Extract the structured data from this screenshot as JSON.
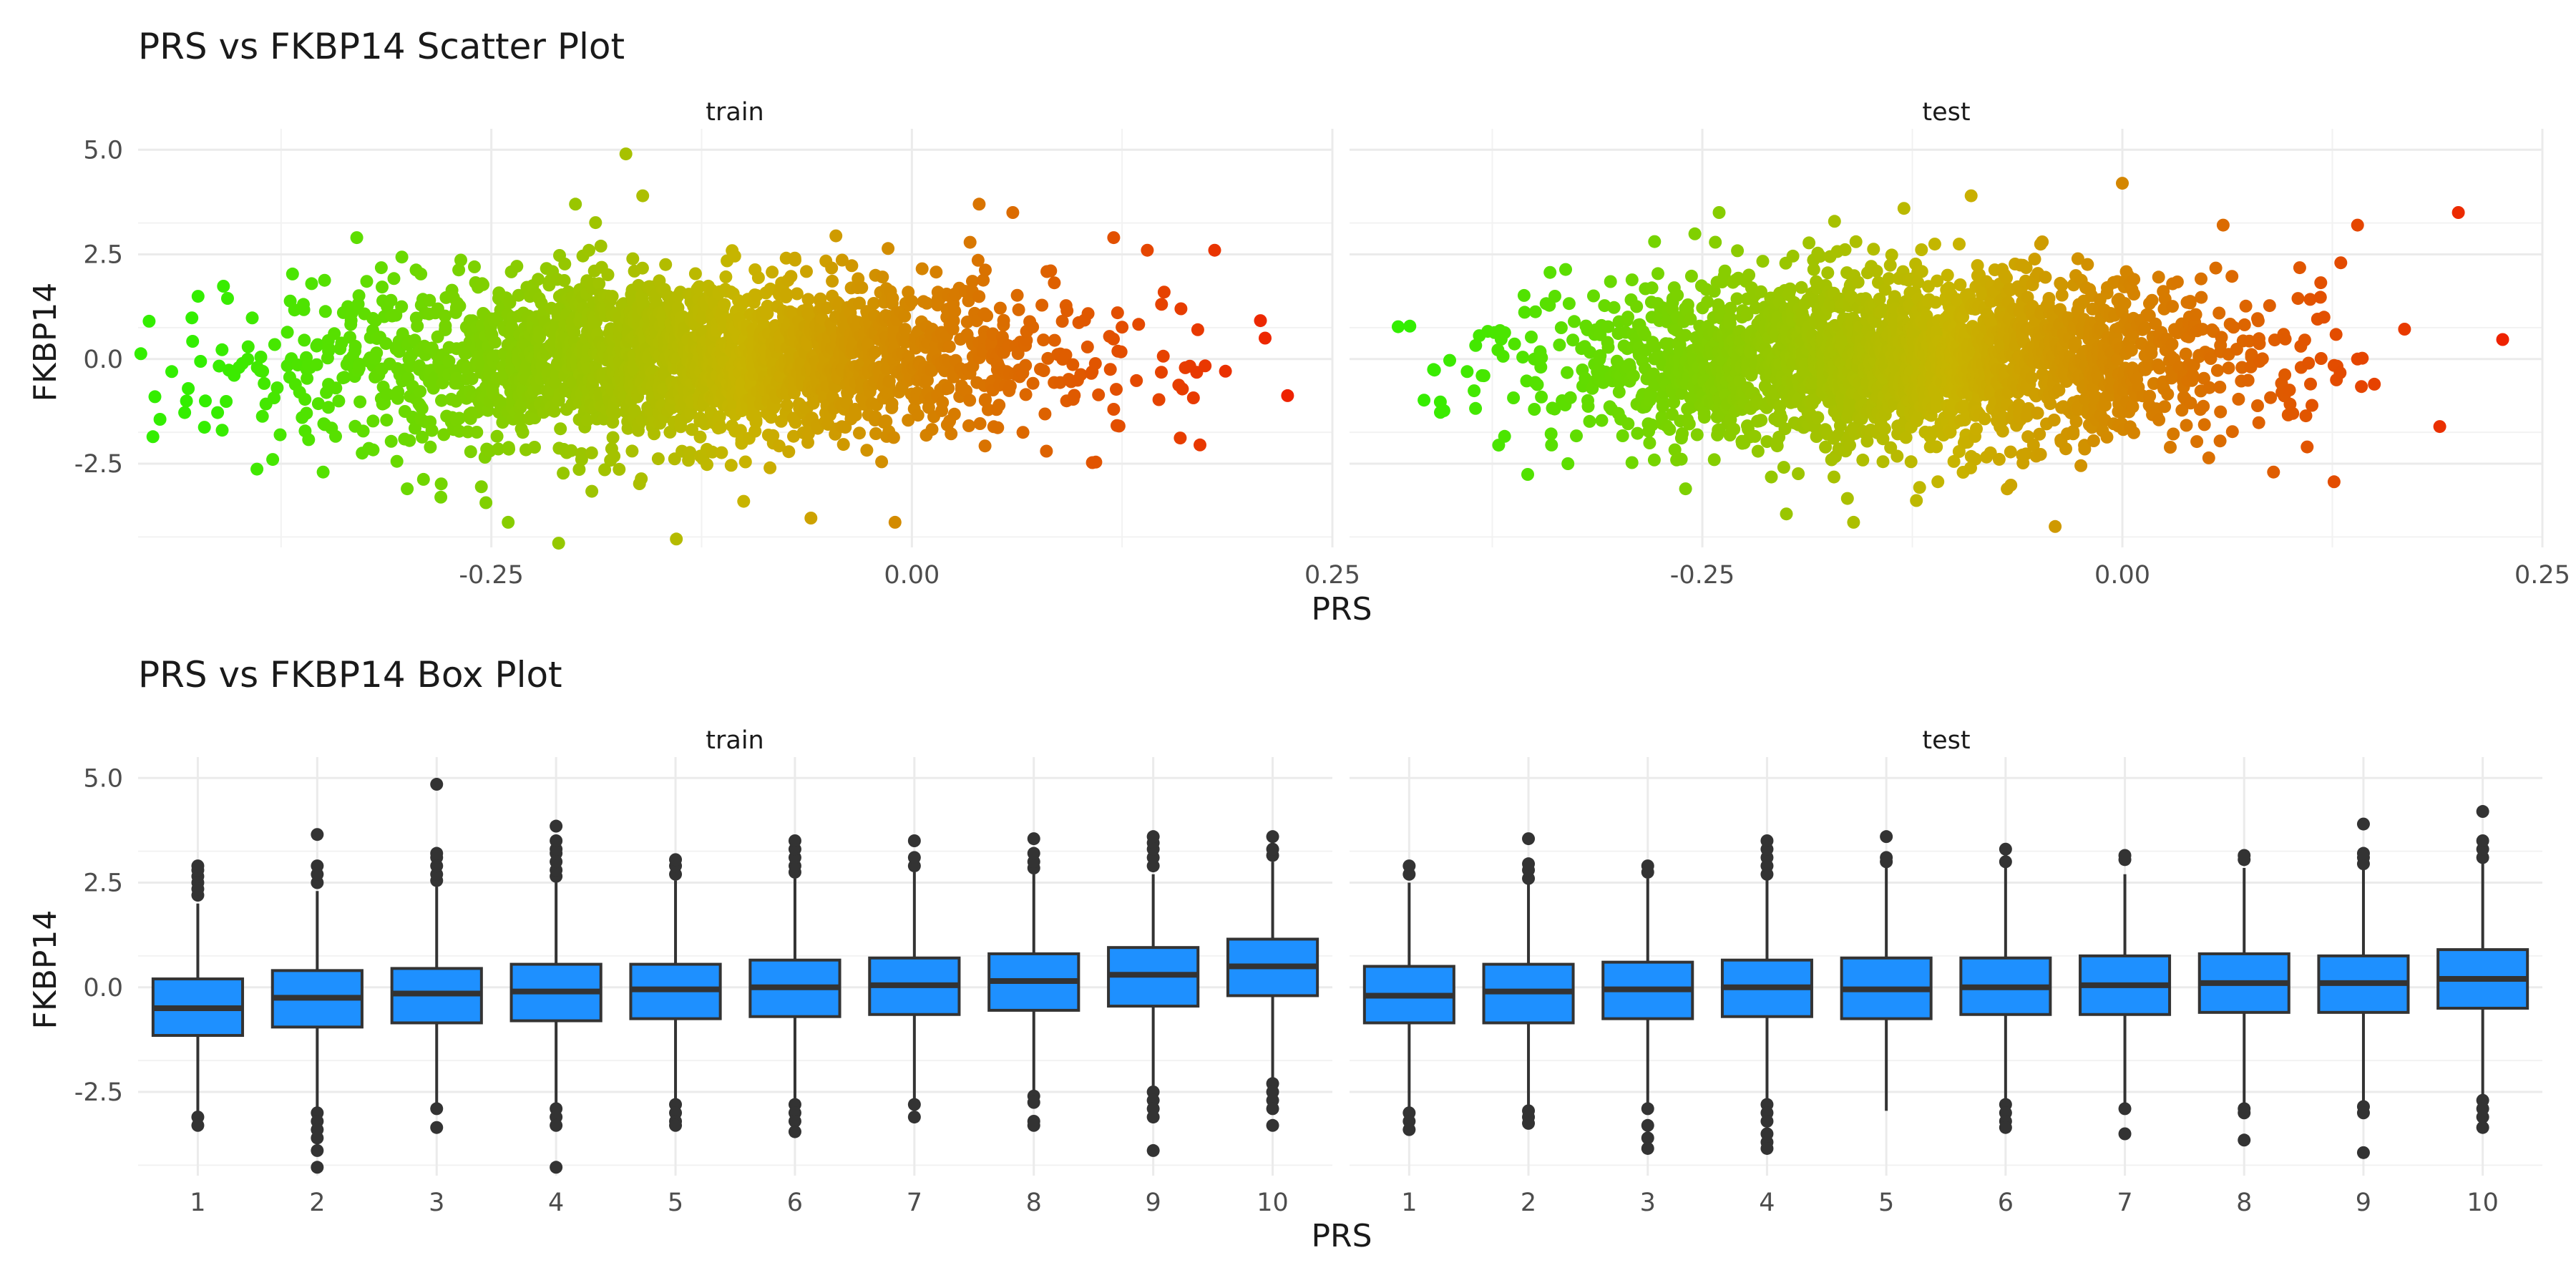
{
  "chart_data": [
    {
      "type": "scatter",
      "title": "PRS vs FKBP14 Scatter Plot",
      "xlabel": "PRS",
      "ylabel": "FKBP14",
      "xlim": [
        -0.46,
        0.25
      ],
      "ylim": [
        -4.5,
        5.5
      ],
      "x_ticks": [
        -0.25,
        0.0,
        0.25
      ],
      "x_tick_labels": [
        "-0.25",
        "0.00",
        "0.25"
      ],
      "y_ticks": [
        -2.5,
        0.0,
        2.5,
        5.0
      ],
      "y_tick_labels": [
        "-2.5",
        "0.0",
        "2.5",
        "5.0"
      ],
      "grid": true,
      "color_scale": {
        "low": "#33ee00",
        "mid": "#c8b400",
        "high": "#ee2200"
      },
      "panels": [
        {
          "name": "train",
          "bulk": {
            "x_center": -0.14,
            "x_sd": 0.11,
            "y_center": 0.0,
            "y_sd": 1.0,
            "slope": 3.5
          },
          "extremes": [
            [
              -0.45,
              -0.9
            ],
            [
              -0.44,
              -0.3
            ],
            [
              -0.42,
              -1.0
            ],
            [
              -0.41,
              -1.7
            ],
            [
              -0.4,
              -0.2
            ],
            [
              -0.38,
              -2.4
            ],
            [
              -0.35,
              -2.7
            ],
            [
              -0.33,
              2.9
            ],
            [
              -0.3,
              -3.1
            ],
            [
              -0.28,
              -3.3
            ],
            [
              -0.24,
              -3.9
            ],
            [
              -0.21,
              -4.4
            ],
            [
              -0.2,
              3.7
            ],
            [
              -0.17,
              4.9
            ],
            [
              -0.16,
              3.9
            ],
            [
              -0.14,
              -4.3
            ],
            [
              -0.1,
              -3.4
            ],
            [
              -0.06,
              -3.8
            ],
            [
              -0.01,
              -3.9
            ],
            [
              0.04,
              3.7
            ],
            [
              0.06,
              3.5
            ],
            [
              0.08,
              -2.2
            ],
            [
              0.12,
              2.9
            ],
            [
              0.12,
              -1.2
            ],
            [
              0.14,
              2.6
            ],
            [
              0.15,
              1.6
            ],
            [
              0.16,
              1.2
            ],
            [
              0.17,
              0.7
            ],
            [
              0.18,
              2.6
            ],
            [
              0.21,
              0.5
            ]
          ]
        },
        {
          "name": "test",
          "bulk": {
            "x_center": -0.13,
            "x_sd": 0.1,
            "y_center": 0.0,
            "y_sd": 1.0,
            "slope": 3.5
          },
          "extremes": [
            [
              -0.41,
              -0.25
            ],
            [
              -0.39,
              -0.3
            ],
            [
              -0.38,
              -0.4
            ],
            [
              -0.35,
              -1.2
            ],
            [
              -0.35,
              0.0
            ],
            [
              -0.33,
              -2.5
            ],
            [
              -0.32,
              0.3
            ],
            [
              -0.31,
              0.8
            ],
            [
              -0.3,
              -1.3
            ],
            [
              -0.28,
              1.7
            ],
            [
              -0.26,
              -3.1
            ],
            [
              -0.24,
              3.5
            ],
            [
              -0.2,
              -3.7
            ],
            [
              -0.16,
              -3.9
            ],
            [
              -0.13,
              3.6
            ],
            [
              -0.09,
              3.9
            ],
            [
              -0.04,
              -4.0
            ],
            [
              0.0,
              4.2
            ],
            [
              0.06,
              3.2
            ],
            [
              0.09,
              -2.7
            ],
            [
              0.11,
              -2.1
            ],
            [
              0.12,
              1.0
            ],
            [
              0.13,
              2.3
            ],
            [
              0.14,
              3.2
            ],
            [
              0.14,
              0.0
            ],
            [
              0.15,
              -0.6
            ],
            [
              0.2,
              3.5
            ]
          ]
        }
      ]
    },
    {
      "type": "box",
      "title": "PRS vs FKBP14 Box Plot",
      "xlabel": "PRS",
      "ylabel": "FKBP14",
      "categories": [
        "1",
        "2",
        "3",
        "4",
        "5",
        "6",
        "7",
        "8",
        "9",
        "10"
      ],
      "ylim": [
        -4.5,
        5.5
      ],
      "y_ticks": [
        -2.5,
        0.0,
        2.5,
        5.0
      ],
      "y_tick_labels": [
        "-2.5",
        "0.0",
        "2.5",
        "5.0"
      ],
      "grid": true,
      "box_fill": "#1e90ff",
      "box_stroke": "#333333",
      "panels": [
        {
          "name": "train",
          "boxes": [
            {
              "min": -3.0,
              "q1": -1.15,
              "median": -0.5,
              "q3": 0.2,
              "max": 2.0,
              "outliers": [
                2.2,
                2.35,
                2.5,
                2.65,
                2.8,
                2.9,
                -3.1,
                -3.3
              ]
            },
            {
              "min": -2.85,
              "q1": -0.95,
              "median": -0.25,
              "q3": 0.4,
              "max": 2.3,
              "outliers": [
                2.5,
                2.7,
                2.9,
                3.65,
                -3.0,
                -3.2,
                -3.4,
                -3.6,
                -3.9,
                -4.3
              ]
            },
            {
              "min": -2.8,
              "q1": -0.85,
              "median": -0.15,
              "q3": 0.45,
              "max": 2.4,
              "outliers": [
                2.55,
                2.7,
                2.9,
                3.1,
                3.2,
                4.85,
                -2.9,
                -3.35
              ]
            },
            {
              "min": -2.75,
              "q1": -0.8,
              "median": -0.1,
              "q3": 0.55,
              "max": 2.5,
              "outliers": [
                2.65,
                2.8,
                3.0,
                3.2,
                3.3,
                3.5,
                3.85,
                -2.9,
                -3.1,
                -3.3,
                -4.3
              ]
            },
            {
              "min": -2.7,
              "q1": -0.75,
              "median": -0.05,
              "q3": 0.55,
              "max": 2.55,
              "outliers": [
                2.7,
                2.9,
                3.05,
                -2.8,
                -3.0,
                -3.2,
                -3.3
              ]
            },
            {
              "min": -2.7,
              "q1": -0.7,
              "median": 0.0,
              "q3": 0.65,
              "max": 2.6,
              "outliers": [
                2.75,
                2.9,
                3.1,
                3.3,
                3.5,
                -2.8,
                -3.0,
                -3.2,
                -3.45
              ]
            },
            {
              "min": -2.7,
              "q1": -0.65,
              "median": 0.05,
              "q3": 0.7,
              "max": 2.75,
              "outliers": [
                2.9,
                3.1,
                3.5,
                -2.8,
                -3.1
              ]
            },
            {
              "min": -2.5,
              "q1": -0.55,
              "median": 0.15,
              "q3": 0.8,
              "max": 2.7,
              "outliers": [
                2.85,
                3.0,
                3.2,
                3.55,
                -2.6,
                -2.75,
                -3.2,
                -3.3
              ]
            },
            {
              "min": -2.35,
              "q1": -0.45,
              "median": 0.3,
              "q3": 0.95,
              "max": 2.7,
              "outliers": [
                2.9,
                3.1,
                3.3,
                3.45,
                3.6,
                -2.5,
                -2.7,
                -2.9,
                -3.1,
                -3.9
              ]
            },
            {
              "min": -2.2,
              "q1": -0.2,
              "median": 0.5,
              "q3": 1.15,
              "max": 3.0,
              "outliers": [
                3.15,
                3.3,
                3.6,
                -2.3,
                -2.5,
                -2.7,
                -2.9,
                -3.3
              ]
            }
          ]
        },
        {
          "name": "test",
          "boxes": [
            {
              "min": -2.9,
              "q1": -0.85,
              "median": -0.2,
              "q3": 0.5,
              "max": 2.5,
              "outliers": [
                2.7,
                2.9,
                -3.0,
                -3.2,
                -3.4
              ]
            },
            {
              "min": -2.85,
              "q1": -0.85,
              "median": -0.1,
              "q3": 0.55,
              "max": 2.5,
              "outliers": [
                2.6,
                2.8,
                2.95,
                3.55,
                -2.95,
                -3.1,
                -3.25
              ]
            },
            {
              "min": -2.8,
              "q1": -0.75,
              "median": -0.05,
              "q3": 0.6,
              "max": 2.6,
              "outliers": [
                2.75,
                2.9,
                -2.9,
                -3.3,
                -3.6,
                -3.85
              ]
            },
            {
              "min": -2.7,
              "q1": -0.7,
              "median": 0.0,
              "q3": 0.65,
              "max": 2.6,
              "outliers": [
                2.7,
                2.9,
                3.1,
                3.3,
                3.5,
                -2.8,
                -3.0,
                -3.2,
                -3.5,
                -3.7,
                -3.85
              ]
            },
            {
              "min": -2.95,
              "q1": -0.75,
              "median": -0.05,
              "q3": 0.7,
              "max": 2.85,
              "outliers": [
                3.0,
                3.1,
                3.6
              ]
            },
            {
              "min": -2.7,
              "q1": -0.65,
              "median": 0.0,
              "q3": 0.7,
              "max": 2.9,
              "outliers": [
                3.0,
                3.3,
                -2.8,
                -3.0,
                -3.2,
                -3.35
              ]
            },
            {
              "min": -2.8,
              "q1": -0.65,
              "median": 0.05,
              "q3": 0.75,
              "max": 2.7,
              "outliers": [
                3.05,
                3.15,
                -2.9,
                -3.5
              ]
            },
            {
              "min": -2.75,
              "q1": -0.6,
              "median": 0.1,
              "q3": 0.8,
              "max": 2.85,
              "outliers": [
                3.05,
                3.15,
                -2.9,
                -3.0,
                -3.65
              ]
            },
            {
              "min": -2.75,
              "q1": -0.6,
              "median": 0.1,
              "q3": 0.75,
              "max": 2.8,
              "outliers": [
                2.95,
                3.1,
                3.2,
                3.9,
                -2.85,
                -3.0,
                -3.95
              ]
            },
            {
              "min": -2.65,
              "q1": -0.5,
              "median": 0.2,
              "q3": 0.9,
              "max": 3.0,
              "outliers": [
                3.1,
                3.3,
                3.5,
                4.2,
                -2.7,
                -2.9,
                -3.1,
                -3.35
              ]
            }
          ]
        }
      ]
    }
  ]
}
